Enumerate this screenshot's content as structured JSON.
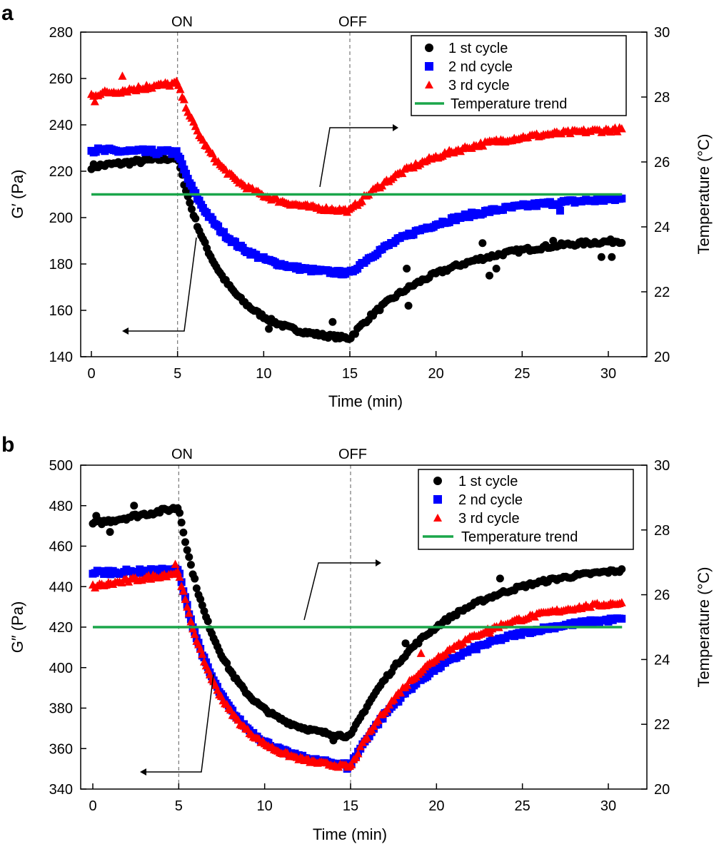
{
  "chart_data": [
    {
      "type": "scatter",
      "panel": "a",
      "xlabel": "Time (min)",
      "ylabel": "G′ (Pa)",
      "ylabel_right": "Temperature (°C)",
      "xlim": [
        0,
        32
      ],
      "xticks": [
        "0",
        "5",
        "10",
        "15",
        "20",
        "25",
        "30"
      ],
      "ylim": [
        140,
        280
      ],
      "yticks": [
        "140",
        "160",
        "180",
        "200",
        "220",
        "240",
        "260",
        "280"
      ],
      "ylim_right": [
        20,
        30
      ],
      "yticks_right": [
        "20",
        "22",
        "24",
        "26",
        "28",
        "30"
      ],
      "annotations": {
        "on": "ON",
        "off": "OFF",
        "on_x": 5,
        "off_x": 15
      },
      "legend_position": "top-right",
      "series": [
        {
          "name": "1 st cycle",
          "marker": "circle",
          "color": "#000000",
          "start": 222,
          "plateau_end": 226,
          "min": 148,
          "recovery_end": 190,
          "outliers": [
            [
              10.3,
              152
            ],
            [
              14,
              155
            ],
            [
              18.3,
              178
            ],
            [
              18.4,
              162
            ],
            [
              22.7,
              189
            ],
            [
              23.1,
              175
            ],
            [
              23.5,
              178
            ],
            [
              26.8,
              190
            ],
            [
              29.6,
              183
            ],
            [
              30.2,
              183
            ]
          ]
        },
        {
          "name": "2 nd cycle",
          "marker": "square",
          "color": "#0000ff",
          "start": 229,
          "plateau_end": 228,
          "min": 176,
          "recovery_end": 208,
          "outliers": [
            [
              27.2,
              203
            ],
            [
              25.7,
              205
            ]
          ]
        },
        {
          "name": "3 rd cycle",
          "marker": "triangle",
          "color": "#ff0000",
          "start": 253,
          "plateau_end": 258,
          "min": 203,
          "recovery_end": 238,
          "outliers": [
            [
              0.2,
              250
            ],
            [
              1.8,
              261
            ],
            [
              3.2,
              257
            ]
          ]
        },
        {
          "name": "Temperature trend",
          "marker": "line",
          "color": "#1aa64a",
          "axis": "right",
          "x": [
            0,
            30.8
          ],
          "y": [
            25,
            25
          ]
        }
      ]
    },
    {
      "type": "scatter",
      "panel": "b",
      "xlabel": "Time (min)",
      "ylabel": "G″ (Pa)",
      "ylabel_right": "Temperature (°C)",
      "xlim": [
        0,
        32
      ],
      "xticks": [
        "0",
        "5",
        "10",
        "15",
        "20",
        "25",
        "30"
      ],
      "ylim": [
        340,
        500
      ],
      "yticks": [
        "340",
        "360",
        "380",
        "400",
        "420",
        "440",
        "460",
        "480",
        "500"
      ],
      "ylim_right": [
        20,
        30
      ],
      "yticks_right": [
        "20",
        "22",
        "24",
        "26",
        "28",
        "30"
      ],
      "annotations": {
        "on": "ON",
        "off": "OFF",
        "on_x": 5,
        "off_x": 15
      },
      "legend_position": "top-right",
      "series": [
        {
          "name": "1 st cycle",
          "marker": "circle",
          "color": "#000000",
          "start": 471,
          "plateau_end": 479,
          "min": 366,
          "recovery_end": 448,
          "outliers": [
            [
              0.2,
              475
            ],
            [
              1,
              467
            ],
            [
              2.4,
              480
            ],
            [
              14,
              364
            ],
            [
              23.7,
              444
            ],
            [
              18.2,
              412
            ]
          ]
        },
        {
          "name": "2 nd cycle",
          "marker": "square",
          "color": "#0000ff",
          "start": 447,
          "plateau_end": 448,
          "min": 352,
          "recovery_end": 424,
          "outliers": [
            [
              14.8,
              350
            ]
          ]
        },
        {
          "name": "3 rd cycle",
          "marker": "triangle",
          "color": "#ff0000",
          "start": 440,
          "plateau_end": 447,
          "min": 351,
          "recovery_end": 432,
          "outliers": [
            [
              4.8,
              451
            ],
            [
              19.1,
              407
            ],
            [
              21.3,
              412
            ],
            [
              23.1,
              417
            ]
          ]
        },
        {
          "name": "Temperature trend",
          "marker": "line",
          "color": "#1aa64a",
          "axis": "right",
          "x": [
            0,
            30.8
          ],
          "y": [
            25,
            25
          ]
        }
      ]
    }
  ]
}
